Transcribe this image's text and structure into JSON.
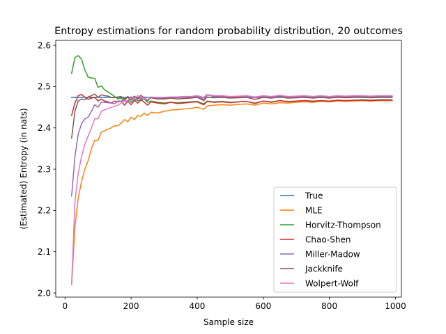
{
  "chart_data": {
    "type": "line",
    "title": "Entropy estimations for random probability distribution, 20 outcomes",
    "xlabel": "Sample size",
    "ylabel": "(Estimated) Entropy (in nats)",
    "xlim": [
      -28,
      1018
    ],
    "ylim": [
      1.99,
      2.612
    ],
    "xticks": [
      0,
      200,
      400,
      600,
      800,
      1000
    ],
    "yticks": [
      2.0,
      2.1,
      2.2,
      2.3,
      2.4,
      2.5,
      2.6
    ],
    "xtick_labels": [
      "0",
      "200",
      "400",
      "600",
      "800",
      "1000"
    ],
    "ytick_labels": [
      "2.0",
      "2.1",
      "2.2",
      "2.3",
      "2.4",
      "2.5",
      "2.6"
    ],
    "legend_position": "lower-right",
    "grid": false,
    "x": [
      20,
      30,
      40,
      50,
      60,
      70,
      80,
      90,
      100,
      110,
      120,
      130,
      140,
      150,
      160,
      170,
      180,
      190,
      200,
      210,
      220,
      230,
      240,
      250,
      260,
      280,
      300,
      320,
      340,
      360,
      380,
      400,
      420,
      430,
      450,
      475,
      500,
      525,
      550,
      575,
      600,
      625,
      650,
      675,
      700,
      725,
      750,
      775,
      800,
      825,
      850,
      875,
      900,
      925,
      950,
      975,
      990
    ],
    "series": [
      {
        "name": "True",
        "color": "#1f77b4",
        "values": [
          2.474,
          2.474,
          2.474,
          2.474,
          2.474,
          2.474,
          2.474,
          2.474,
          2.474,
          2.474,
          2.474,
          2.474,
          2.474,
          2.474,
          2.474,
          2.474,
          2.474,
          2.474,
          2.474,
          2.474,
          2.474,
          2.474,
          2.474,
          2.474,
          2.474,
          2.474,
          2.474,
          2.474,
          2.474,
          2.474,
          2.474,
          2.474,
          2.474,
          2.474,
          2.474,
          2.474,
          2.474,
          2.474,
          2.474,
          2.474,
          2.474,
          2.474,
          2.474,
          2.474,
          2.474,
          2.474,
          2.474,
          2.474,
          2.474,
          2.474,
          2.474,
          2.474,
          2.474,
          2.474,
          2.474,
          2.474,
          2.474
        ]
      },
      {
        "name": "MLE",
        "color": "#ff7f0e",
        "values": [
          2.02,
          2.16,
          2.23,
          2.27,
          2.3,
          2.32,
          2.35,
          2.37,
          2.37,
          2.39,
          2.393,
          2.397,
          2.4,
          2.405,
          2.405,
          2.412,
          2.42,
          2.415,
          2.426,
          2.42,
          2.43,
          2.428,
          2.436,
          2.43,
          2.438,
          2.436,
          2.44,
          2.443,
          2.444,
          2.446,
          2.447,
          2.45,
          2.445,
          2.453,
          2.455,
          2.456,
          2.455,
          2.457,
          2.458,
          2.455,
          2.46,
          2.458,
          2.461,
          2.46,
          2.462,
          2.463,
          2.462,
          2.464,
          2.463,
          2.465,
          2.464,
          2.465,
          2.466,
          2.465,
          2.466,
          2.466,
          2.466
        ]
      },
      {
        "name": "Horvitz-Thompson",
        "color": "#2ca02c",
        "values": [
          2.532,
          2.57,
          2.575,
          2.567,
          2.54,
          2.523,
          2.521,
          2.52,
          2.498,
          2.502,
          2.492,
          2.487,
          2.482,
          2.476,
          2.47,
          2.472,
          2.466,
          2.475,
          2.462,
          2.47,
          2.466,
          2.468,
          2.47,
          2.462,
          2.465,
          2.462,
          2.46,
          2.462,
          2.461,
          2.462,
          2.463,
          2.464,
          2.458,
          2.465,
          2.463,
          2.464,
          2.462,
          2.463,
          2.464,
          2.46,
          2.465,
          2.463,
          2.466,
          2.464,
          2.465,
          2.466,
          2.465,
          2.466,
          2.465,
          2.467,
          2.466,
          2.467,
          2.468,
          2.467,
          2.468,
          2.468,
          2.468
        ]
      },
      {
        "name": "Chao-Shen",
        "color": "#d62728",
        "values": [
          2.43,
          2.46,
          2.478,
          2.481,
          2.474,
          2.469,
          2.472,
          2.474,
          2.465,
          2.47,
          2.465,
          2.463,
          2.46,
          2.465,
          2.463,
          2.465,
          2.455,
          2.465,
          2.456,
          2.467,
          2.46,
          2.468,
          2.462,
          2.455,
          2.463,
          2.46,
          2.458,
          2.462,
          2.459,
          2.46,
          2.462,
          2.463,
          2.456,
          2.464,
          2.462,
          2.463,
          2.461,
          2.463,
          2.464,
          2.459,
          2.465,
          2.462,
          2.466,
          2.463,
          2.465,
          2.466,
          2.464,
          2.466,
          2.464,
          2.467,
          2.466,
          2.467,
          2.467,
          2.466,
          2.467,
          2.467,
          2.467
        ]
      },
      {
        "name": "Miller-Madow",
        "color": "#9467bd",
        "values": [
          2.235,
          2.33,
          2.385,
          2.41,
          2.422,
          2.426,
          2.44,
          2.456,
          2.45,
          2.462,
          2.462,
          2.461,
          2.46,
          2.458,
          2.465,
          2.465,
          2.468,
          2.462,
          2.474,
          2.464,
          2.474,
          2.47,
          2.475,
          2.466,
          2.474,
          2.472,
          2.472,
          2.474,
          2.473,
          2.474,
          2.474,
          2.476,
          2.469,
          2.48,
          2.476,
          2.476,
          2.474,
          2.475,
          2.476,
          2.473,
          2.476,
          2.474,
          2.477,
          2.474,
          2.475,
          2.476,
          2.474,
          2.476,
          2.474,
          2.476,
          2.475,
          2.476,
          2.476,
          2.475,
          2.476,
          2.476,
          2.476
        ]
      },
      {
        "name": "Jackknife",
        "color": "#8c564b",
        "values": [
          2.375,
          2.44,
          2.465,
          2.47,
          2.468,
          2.475,
          2.478,
          2.482,
          2.474,
          2.48,
          2.478,
          2.477,
          2.474,
          2.473,
          2.475,
          2.476,
          2.47,
          2.476,
          2.468,
          2.477,
          2.47,
          2.479,
          2.472,
          2.466,
          2.473,
          2.47,
          2.47,
          2.472,
          2.47,
          2.471,
          2.472,
          2.474,
          2.466,
          2.475,
          2.473,
          2.474,
          2.472,
          2.473,
          2.474,
          2.469,
          2.474,
          2.472,
          2.475,
          2.472,
          2.473,
          2.474,
          2.472,
          2.474,
          2.472,
          2.474,
          2.473,
          2.474,
          2.474,
          2.473,
          2.474,
          2.474,
          2.474
        ]
      },
      {
        "name": "Wolpert-Wolf",
        "color": "#e377c2",
        "values": [
          2.022,
          2.22,
          2.29,
          2.33,
          2.36,
          2.38,
          2.4,
          2.422,
          2.422,
          2.44,
          2.444,
          2.447,
          2.45,
          2.452,
          2.455,
          2.46,
          2.465,
          2.466,
          2.476,
          2.47,
          2.478,
          2.475,
          2.472,
          2.468,
          2.475,
          2.473,
          2.474,
          2.475,
          2.475,
          2.476,
          2.476,
          2.478,
          2.474,
          2.481,
          2.478,
          2.478,
          2.476,
          2.477,
          2.478,
          2.475,
          2.478,
          2.476,
          2.479,
          2.476,
          2.477,
          2.478,
          2.476,
          2.478,
          2.476,
          2.478,
          2.477,
          2.478,
          2.478,
          2.477,
          2.478,
          2.478,
          2.478
        ]
      }
    ]
  }
}
